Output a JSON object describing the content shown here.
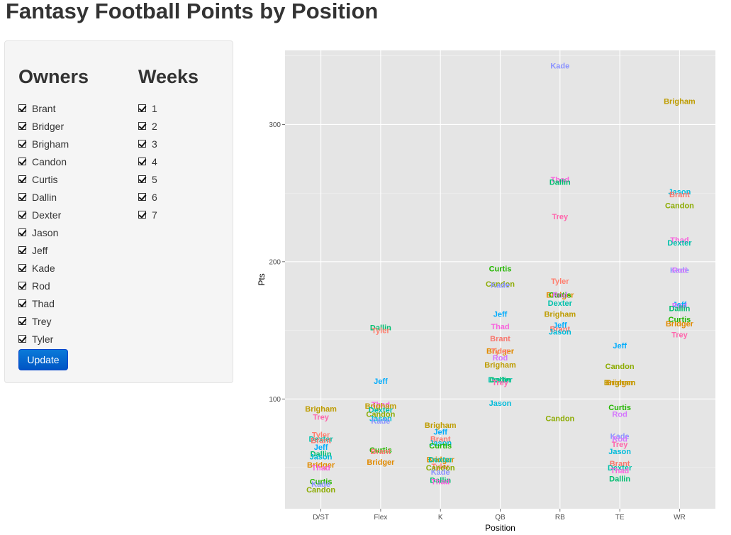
{
  "page": {
    "title": "Fantasy Football Points by Position"
  },
  "filters": {
    "owners_heading": "Owners",
    "weeks_heading": "Weeks",
    "owners": [
      {
        "label": "Brant",
        "checked": true
      },
      {
        "label": "Bridger",
        "checked": true
      },
      {
        "label": "Brigham",
        "checked": true
      },
      {
        "label": "Candon",
        "checked": true
      },
      {
        "label": "Curtis",
        "checked": true
      },
      {
        "label": "Dallin",
        "checked": true
      },
      {
        "label": "Dexter",
        "checked": true
      },
      {
        "label": "Jason",
        "checked": true
      },
      {
        "label": "Jeff",
        "checked": true
      },
      {
        "label": "Kade",
        "checked": true
      },
      {
        "label": "Rod",
        "checked": true
      },
      {
        "label": "Thad",
        "checked": true
      },
      {
        "label": "Trey",
        "checked": true
      },
      {
        "label": "Tyler",
        "checked": true
      }
    ],
    "weeks": [
      {
        "label": "1",
        "checked": true
      },
      {
        "label": "2",
        "checked": true
      },
      {
        "label": "3",
        "checked": true
      },
      {
        "label": "4",
        "checked": true
      },
      {
        "label": "5",
        "checked": true
      },
      {
        "label": "6",
        "checked": true
      },
      {
        "label": "7",
        "checked": true
      }
    ],
    "update_label": "Update"
  },
  "chart_data": {
    "type": "scatter",
    "xlabel": "Position",
    "ylabel": "Pts",
    "categories": [
      "D/ST",
      "Flex",
      "K",
      "QB",
      "RB",
      "TE",
      "WR"
    ],
    "y_ticks": [
      100,
      200,
      300
    ],
    "ylim": [
      20,
      354
    ],
    "grid": true,
    "background": "#e5e5e5",
    "owner_colors": {
      "Brant": "#f8766d",
      "Bridger": "#e18a00",
      "Brigham": "#be9c00",
      "Candon": "#8cab00",
      "Curtis": "#24b700",
      "Dallin": "#00be70",
      "Dexter": "#00c1ab",
      "Jason": "#00bbda",
      "Jeff": "#00acfc",
      "Kade": "#8b93ff",
      "Rod": "#d575fe",
      "Thad": "#f962dd",
      "Trey": "#ff65ac",
      "Tyler": "#ff7f6f"
    },
    "points": [
      {
        "x": "D/ST",
        "y": 93,
        "owner": "Brigham"
      },
      {
        "x": "D/ST",
        "y": 87,
        "owner": "Trey"
      },
      {
        "x": "D/ST",
        "y": 74,
        "owner": "Tyler"
      },
      {
        "x": "D/ST",
        "y": 71,
        "owner": "Dexter"
      },
      {
        "x": "D/ST",
        "y": 70,
        "owner": "Brant"
      },
      {
        "x": "D/ST",
        "y": 65,
        "owner": "Jeff"
      },
      {
        "x": "D/ST",
        "y": 60,
        "owner": "Dallin"
      },
      {
        "x": "D/ST",
        "y": 58,
        "owner": "Jason"
      },
      {
        "x": "D/ST",
        "y": 52,
        "owner": "Bridger"
      },
      {
        "x": "D/ST",
        "y": 50,
        "owner": "Thad"
      },
      {
        "x": "D/ST",
        "y": 40,
        "owner": "Curtis"
      },
      {
        "x": "D/ST",
        "y": 38,
        "owner": "Kade"
      },
      {
        "x": "D/ST",
        "y": 34,
        "owner": "Candon"
      },
      {
        "x": "Flex",
        "y": 152,
        "owner": "Dallin"
      },
      {
        "x": "Flex",
        "y": 150,
        "owner": "Tyler"
      },
      {
        "x": "Flex",
        "y": 113,
        "owner": "Jeff"
      },
      {
        "x": "Flex",
        "y": 96,
        "owner": "Thad"
      },
      {
        "x": "Flex",
        "y": 95,
        "owner": "Brigham"
      },
      {
        "x": "Flex",
        "y": 92,
        "owner": "Dexter"
      },
      {
        "x": "Flex",
        "y": 89,
        "owner": "Candon"
      },
      {
        "x": "Flex",
        "y": 86,
        "owner": "Jason"
      },
      {
        "x": "Flex",
        "y": 84,
        "owner": "Kade"
      },
      {
        "x": "Flex",
        "y": 63,
        "owner": "Curtis"
      },
      {
        "x": "Flex",
        "y": 62,
        "owner": "Brant"
      },
      {
        "x": "Flex",
        "y": 54,
        "owner": "Bridger"
      },
      {
        "x": "K",
        "y": 81,
        "owner": "Brigham"
      },
      {
        "x": "K",
        "y": 76,
        "owner": "Jeff"
      },
      {
        "x": "K",
        "y": 71,
        "owner": "Brant"
      },
      {
        "x": "K",
        "y": 68,
        "owner": "Jason"
      },
      {
        "x": "K",
        "y": 66,
        "owner": "Curtis"
      },
      {
        "x": "K",
        "y": 56,
        "owner": "Bridger"
      },
      {
        "x": "K",
        "y": 56,
        "owner": "Dexter"
      },
      {
        "x": "K",
        "y": 51,
        "owner": "Tyler"
      },
      {
        "x": "K",
        "y": 50,
        "owner": "Candon"
      },
      {
        "x": "K",
        "y": 47,
        "owner": "Kade"
      },
      {
        "x": "K",
        "y": 41,
        "owner": "Dallin"
      },
      {
        "x": "K",
        "y": 40,
        "owner": "Thad"
      },
      {
        "x": "QB",
        "y": 195,
        "owner": "Curtis"
      },
      {
        "x": "QB",
        "y": 184,
        "owner": "Candon"
      },
      {
        "x": "QB",
        "y": 183,
        "owner": "Kade"
      },
      {
        "x": "QB",
        "y": 162,
        "owner": "Jeff"
      },
      {
        "x": "QB",
        "y": 153,
        "owner": "Thad"
      },
      {
        "x": "QB",
        "y": 144,
        "owner": "Brant"
      },
      {
        "x": "QB",
        "y": 135,
        "owner": "Bridger"
      },
      {
        "x": "QB",
        "y": 135,
        "owner": "Tyler"
      },
      {
        "x": "QB",
        "y": 130,
        "owner": "Rod"
      },
      {
        "x": "QB",
        "y": 125,
        "owner": "Brigham"
      },
      {
        "x": "QB",
        "y": 114,
        "owner": "Dexter"
      },
      {
        "x": "QB",
        "y": 114,
        "owner": "Dallin"
      },
      {
        "x": "QB",
        "y": 112,
        "owner": "Trey"
      },
      {
        "x": "QB",
        "y": 97,
        "owner": "Jason"
      },
      {
        "x": "RB",
        "y": 343,
        "owner": "Kade"
      },
      {
        "x": "RB",
        "y": 260,
        "owner": "Thad"
      },
      {
        "x": "RB",
        "y": 258,
        "owner": "Dallin"
      },
      {
        "x": "RB",
        "y": 233,
        "owner": "Trey"
      },
      {
        "x": "RB",
        "y": 186,
        "owner": "Tyler"
      },
      {
        "x": "RB",
        "y": 176,
        "owner": "Bridger"
      },
      {
        "x": "RB",
        "y": 176,
        "owner": "Curtis"
      },
      {
        "x": "RB",
        "y": 176,
        "owner": "Rod"
      },
      {
        "x": "RB",
        "y": 170,
        "owner": "Dexter"
      },
      {
        "x": "RB",
        "y": 162,
        "owner": "Brigham"
      },
      {
        "x": "RB",
        "y": 154,
        "owner": "Jeff"
      },
      {
        "x": "RB",
        "y": 151,
        "owner": "Brant"
      },
      {
        "x": "RB",
        "y": 149,
        "owner": "Jason"
      },
      {
        "x": "RB",
        "y": 86,
        "owner": "Candon"
      },
      {
        "x": "TE",
        "y": 139,
        "owner": "Jeff"
      },
      {
        "x": "TE",
        "y": 124,
        "owner": "Candon"
      },
      {
        "x": "TE",
        "y": 112,
        "owner": "Bridger"
      },
      {
        "x": "TE",
        "y": 112,
        "owner": "Brigham"
      },
      {
        "x": "TE",
        "y": 94,
        "owner": "Curtis"
      },
      {
        "x": "TE",
        "y": 89,
        "owner": "Rod"
      },
      {
        "x": "TE",
        "y": 73,
        "owner": "Kade"
      },
      {
        "x": "TE",
        "y": 71,
        "owner": "Rod"
      },
      {
        "x": "TE",
        "y": 67,
        "owner": "Trey"
      },
      {
        "x": "TE",
        "y": 62,
        "owner": "Jason"
      },
      {
        "x": "TE",
        "y": 53,
        "owner": "Brant"
      },
      {
        "x": "TE",
        "y": 50,
        "owner": "Dexter"
      },
      {
        "x": "TE",
        "y": 48,
        "owner": "Thad"
      },
      {
        "x": "TE",
        "y": 42,
        "owner": "Dallin"
      },
      {
        "x": "WR",
        "y": 317,
        "owner": "Brigham"
      },
      {
        "x": "WR",
        "y": 251,
        "owner": "Jason"
      },
      {
        "x": "WR",
        "y": 249,
        "owner": "Brant"
      },
      {
        "x": "WR",
        "y": 241,
        "owner": "Candon"
      },
      {
        "x": "WR",
        "y": 216,
        "owner": "Thad"
      },
      {
        "x": "WR",
        "y": 214,
        "owner": "Dexter"
      },
      {
        "x": "WR",
        "y": 194,
        "owner": "Kade"
      },
      {
        "x": "WR",
        "y": 194,
        "owner": "Rod"
      },
      {
        "x": "WR",
        "y": 169,
        "owner": "Jeff"
      },
      {
        "x": "WR",
        "y": 168,
        "owner": "Rod"
      },
      {
        "x": "WR",
        "y": 166,
        "owner": "Dallin"
      },
      {
        "x": "WR",
        "y": 158,
        "owner": "Curtis"
      },
      {
        "x": "WR",
        "y": 155,
        "owner": "Bridger"
      },
      {
        "x": "WR",
        "y": 147,
        "owner": "Trey"
      }
    ]
  }
}
